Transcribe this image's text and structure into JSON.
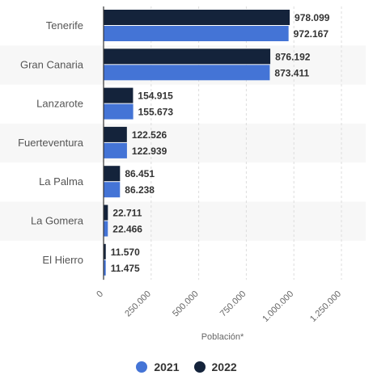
{
  "chart_data": {
    "type": "bar",
    "orientation": "horizontal",
    "categories": [
      "Tenerife",
      "Gran Canaria",
      "Lanzarote",
      "Fuerteventura",
      "La Palma",
      "La Gomera",
      "El Hierro"
    ],
    "series": [
      {
        "name": "2022",
        "color": "#14233b",
        "values": [
          978099,
          876192,
          154915,
          122526,
          86451,
          22711,
          11570
        ],
        "labels": [
          "978.099",
          "876.192",
          "154.915",
          "122.526",
          "86.451",
          "22.711",
          "11.570"
        ]
      },
      {
        "name": "2021",
        "color": "#4474d6",
        "values": [
          972167,
          873411,
          155673,
          122939,
          86238,
          22466,
          11475
        ],
        "labels": [
          "972.167",
          "873.411",
          "155.673",
          "122.939",
          "86.238",
          "22.466",
          "11.475"
        ]
      }
    ],
    "xlabel": "Población*",
    "xlim": [
      0,
      1250000
    ],
    "ticks": [
      0,
      250000,
      500000,
      750000,
      1000000,
      1250000
    ],
    "tick_labels": [
      "0",
      "250.000",
      "500.000",
      "750.000",
      "1.000.000",
      "1.250.000"
    ],
    "grid": true,
    "legend_position": "bottom",
    "legend": [
      {
        "name": "2021",
        "color": "#4474d6"
      },
      {
        "name": "2022",
        "color": "#14233b"
      }
    ]
  }
}
